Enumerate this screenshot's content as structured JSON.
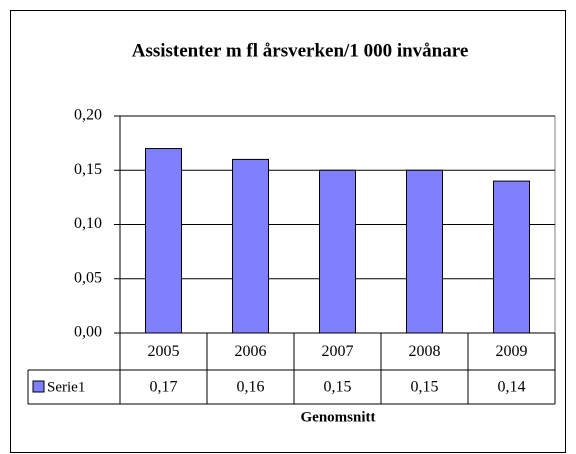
{
  "chart_data": {
    "type": "bar",
    "title": "Assistenter m fl årsverken/1 000 invånare",
    "x_label": "Genomsnitt",
    "categories": [
      "2005",
      "2006",
      "2007",
      "2008",
      "2009"
    ],
    "series": [
      {
        "name": "Serie1",
        "color": "#8080ff",
        "values": [
          0.17,
          0.16,
          0.15,
          0.15,
          0.14
        ],
        "value_labels": [
          "0,17",
          "0,16",
          "0,15",
          "0,15",
          "0,14"
        ]
      }
    ],
    "ylim": [
      0,
      0.2
    ],
    "yticks": [
      {
        "value": 0,
        "label": "0,00"
      },
      {
        "value": 0.05,
        "label": "0,05"
      },
      {
        "value": 0.1,
        "label": "0,10"
      },
      {
        "value": 0.15,
        "label": "0,15"
      },
      {
        "value": 0.2,
        "label": "0,20"
      }
    ],
    "grid": true
  }
}
